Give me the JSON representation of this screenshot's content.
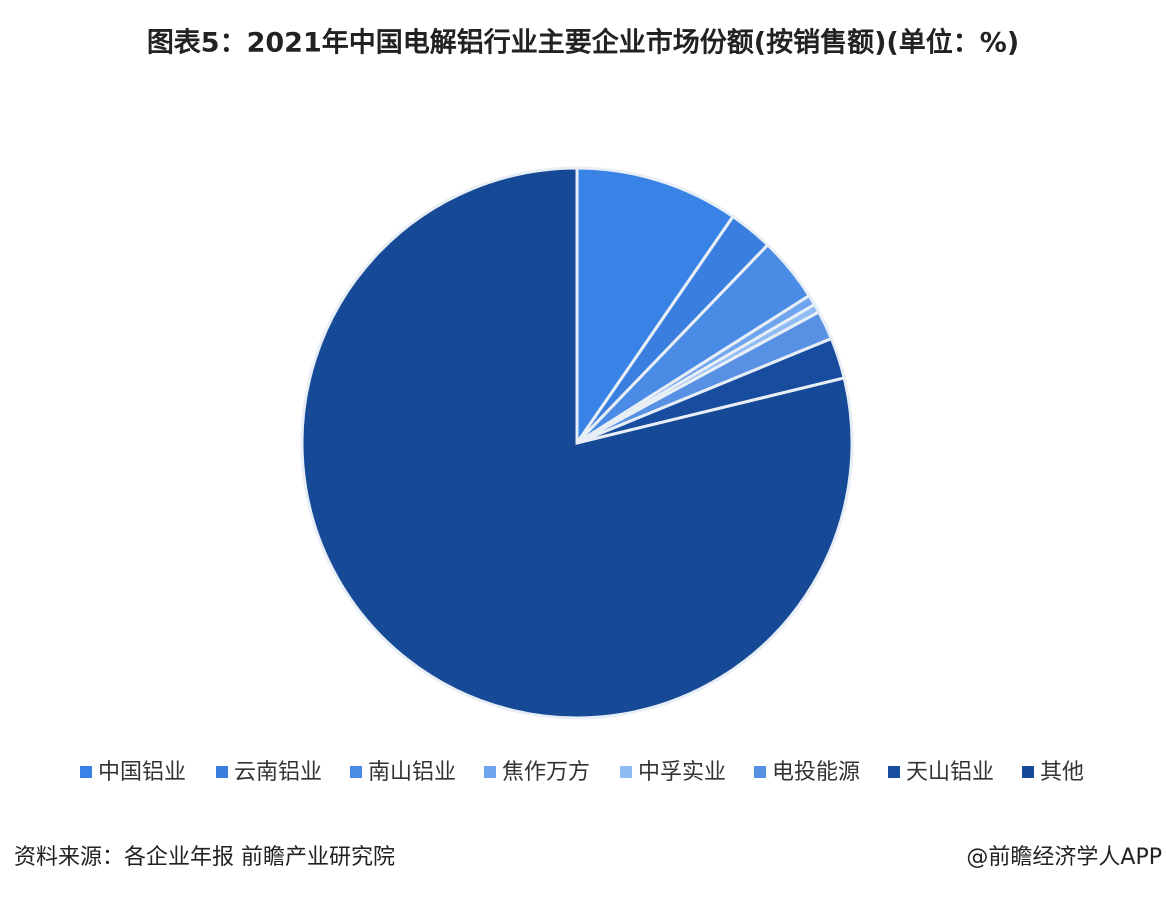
{
  "chart_data": {
    "type": "pie",
    "title": "图表5：2021年中国电解铝行业主要企业市场份额(按销售额)(单位：%)",
    "categories": [
      "中国铝业",
      "云南铝业",
      "南山铝业",
      "焦作万方",
      "中孚实业",
      "电投能源",
      "天山铝业",
      "其他"
    ],
    "values": [
      9.6,
      2.6,
      3.8,
      0.6,
      0.5,
      1.7,
      2.4,
      78.8
    ],
    "colors": [
      "#3883e5",
      "#3a7fe0",
      "#4a8be6",
      "#6fa5ee",
      "#8fbcf3",
      "#5891e3",
      "#174c9e",
      "#164a96"
    ],
    "source": "资料来源：各企业年报 前瞻产业研究院",
    "credit": "@前瞻经济学人APP"
  }
}
